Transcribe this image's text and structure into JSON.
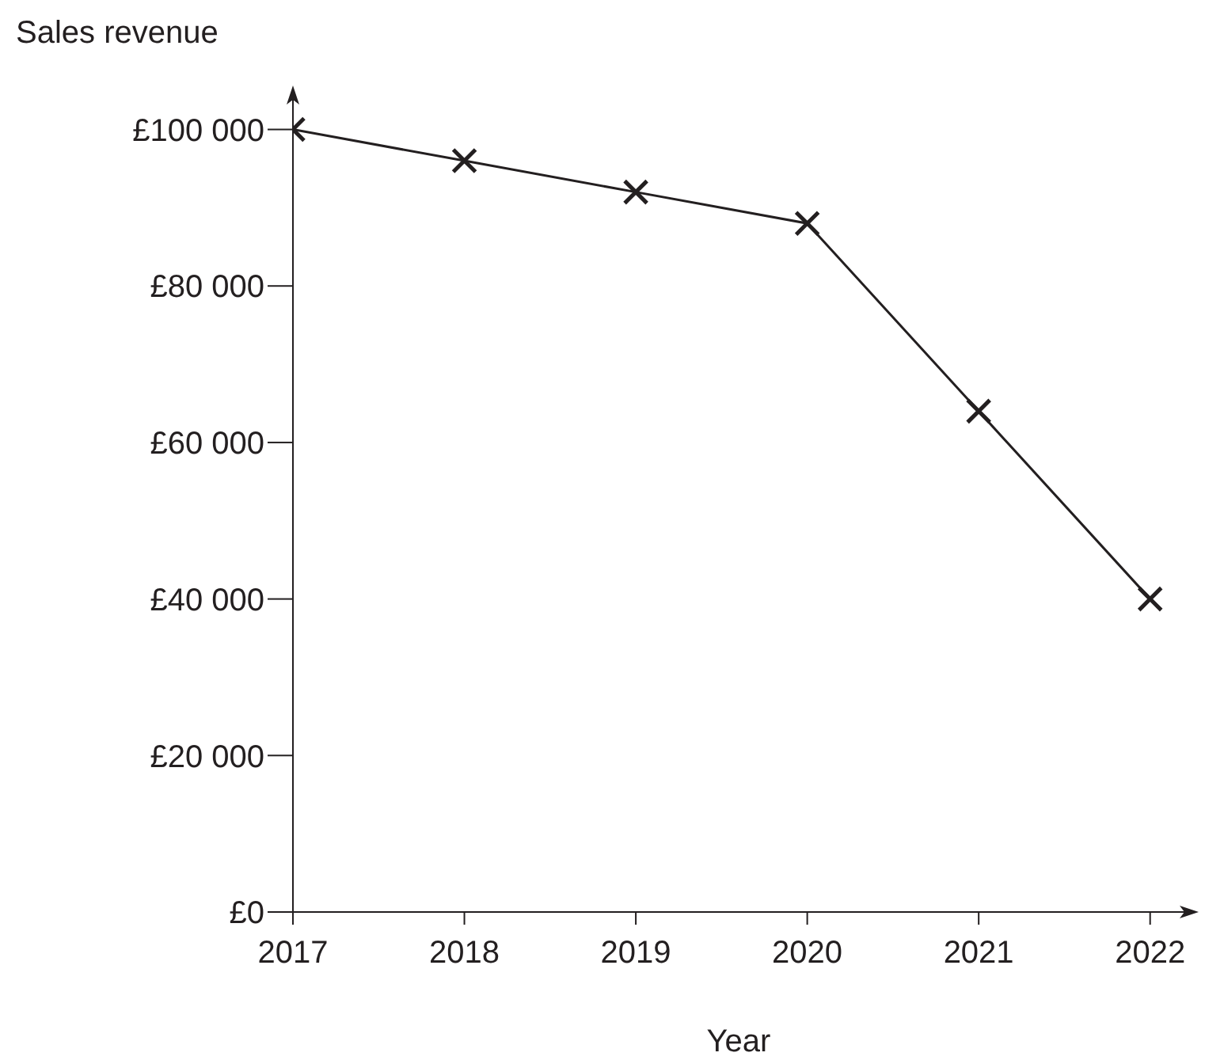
{
  "chart_data": {
    "type": "line",
    "xlabel": "Year",
    "ylabel": "Sales revenue",
    "categories": [
      "2017",
      "2018",
      "2019",
      "2020",
      "2021",
      "2022"
    ],
    "values": [
      100000,
      96000,
      92000,
      88000,
      64000,
      40000
    ],
    "color": "#231f20",
    "marker": "cross",
    "line_style": "solid",
    "ylim": [
      0,
      104000
    ],
    "yticks": [
      {
        "value": 0,
        "label": "£0"
      },
      {
        "value": 20000,
        "label": "£20 000"
      },
      {
        "value": 40000,
        "label": "£40 000"
      },
      {
        "value": 60000,
        "label": "£60 000"
      },
      {
        "value": 80000,
        "label": "£80 000"
      },
      {
        "value": 100000,
        "label": "£100 000"
      }
    ]
  }
}
